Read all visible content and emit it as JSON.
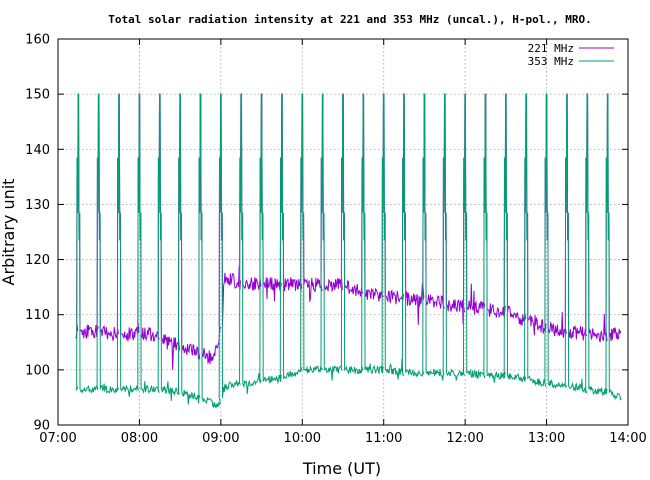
{
  "chart_data": {
    "type": "line",
    "title": "Total solar radiation intensity at 221 and 353 MHz (uncal.), H-pol., MRO.",
    "xlabel": "Time (UT)",
    "ylabel": "Arbitrary unit",
    "xlim": [
      "07:00",
      "14:00"
    ],
    "ylim": [
      90,
      160
    ],
    "x_ticks": [
      "07:00",
      "08:00",
      "09:00",
      "10:00",
      "11:00",
      "12:00",
      "13:00",
      "14:00"
    ],
    "y_ticks": [
      90,
      100,
      110,
      120,
      130,
      140,
      150,
      160
    ],
    "grid": true,
    "legend_position": "top-right",
    "calibration_pulses": {
      "times": [
        "07:15",
        "07:30",
        "07:45",
        "08:00",
        "08:15",
        "08:30",
        "08:45",
        "09:00",
        "09:15",
        "09:30",
        "09:45",
        "10:00",
        "10:15",
        "10:30",
        "10:45",
        "11:00",
        "11:15",
        "11:30",
        "11:45",
        "12:00",
        "12:15",
        "12:30",
        "12:45",
        "13:00",
        "13:15",
        "13:30",
        "13:45"
      ],
      "pulse_peak": 150,
      "step_levels": [
        138.5,
        128.5,
        123.5
      ]
    },
    "series": [
      {
        "name": "221 MHz",
        "color": "#9400d3",
        "baseline_points": [
          [
            "07:13",
            107
          ],
          [
            "07:25",
            107
          ],
          [
            "07:45",
            106.5
          ],
          [
            "08:00",
            106.5
          ],
          [
            "08:10",
            106.5
          ],
          [
            "08:20",
            105
          ],
          [
            "08:30",
            104.5
          ],
          [
            "08:45",
            103
          ],
          [
            "08:55",
            102
          ],
          [
            "09:00",
            108
          ],
          [
            "09:03",
            117
          ],
          [
            "09:15",
            115.5
          ],
          [
            "09:30",
            115.5
          ],
          [
            "09:45",
            115.5
          ],
          [
            "10:00",
            115.5
          ],
          [
            "10:15",
            115.5
          ],
          [
            "10:30",
            115.5
          ],
          [
            "10:45",
            114
          ],
          [
            "11:00",
            113.5
          ],
          [
            "11:15",
            113
          ],
          [
            "11:30",
            112.5
          ],
          [
            "11:45",
            112
          ],
          [
            "12:00",
            111.5
          ],
          [
            "12:15",
            111
          ],
          [
            "12:30",
            110.5
          ],
          [
            "12:45",
            109
          ],
          [
            "13:00",
            107.5
          ],
          [
            "13:15",
            107
          ],
          [
            "13:30",
            106.5
          ],
          [
            "13:45",
            106
          ],
          [
            "13:55",
            107
          ]
        ]
      },
      {
        "name": "353 MHz",
        "color": "#009e73",
        "baseline_points": [
          [
            "07:13",
            96.5
          ],
          [
            "07:30",
            96.5
          ],
          [
            "07:45",
            96.5
          ],
          [
            "08:00",
            96.5
          ],
          [
            "08:15",
            96.5
          ],
          [
            "08:30",
            96
          ],
          [
            "08:45",
            95
          ],
          [
            "08:58",
            93.5
          ],
          [
            "09:03",
            97
          ],
          [
            "09:15",
            97.5
          ],
          [
            "09:30",
            98
          ],
          [
            "09:45",
            98.5
          ],
          [
            "10:00",
            100
          ],
          [
            "10:15",
            100
          ],
          [
            "10:30",
            100
          ],
          [
            "10:45",
            100
          ],
          [
            "11:00",
            100
          ],
          [
            "11:15",
            99.5
          ],
          [
            "11:30",
            99.5
          ],
          [
            "11:45",
            99.5
          ],
          [
            "12:00",
            99.5
          ],
          [
            "12:15",
            99
          ],
          [
            "12:30",
            99
          ],
          [
            "12:45",
            98.5
          ],
          [
            "13:00",
            97.5
          ],
          [
            "13:15",
            97
          ],
          [
            "13:30",
            96.5
          ],
          [
            "13:45",
            96
          ],
          [
            "13:55",
            95
          ]
        ]
      }
    ]
  }
}
